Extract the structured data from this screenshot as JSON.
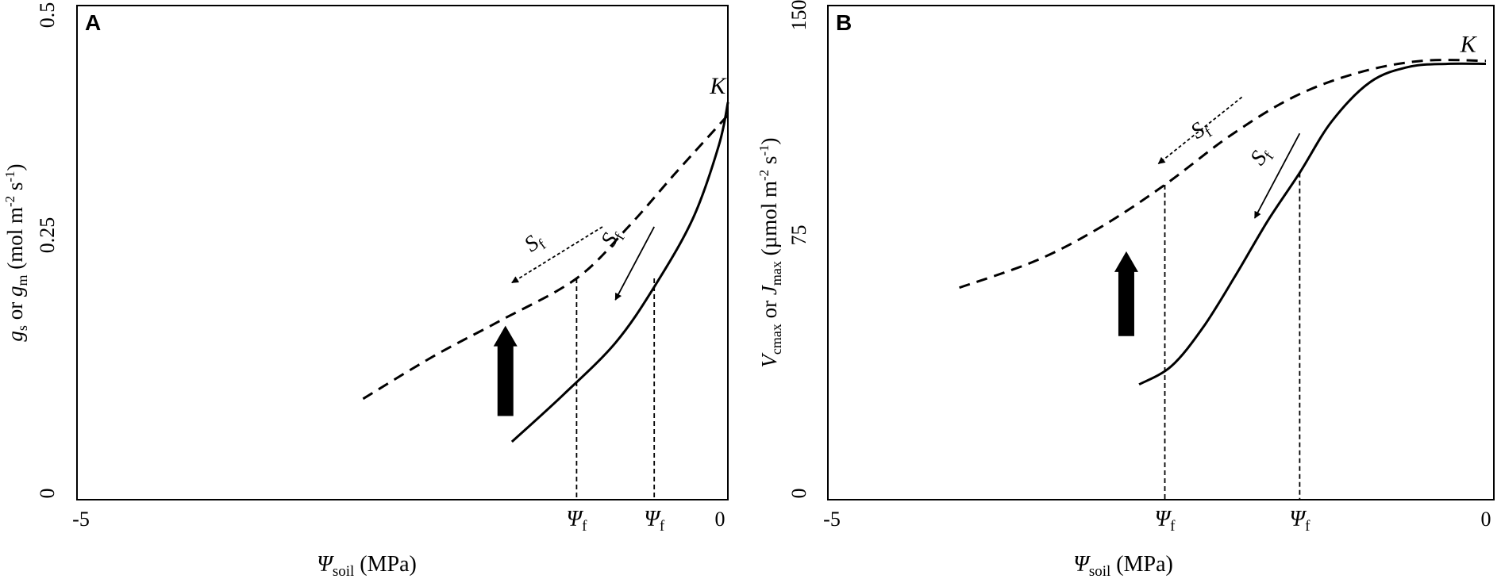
{
  "chart_data": [
    {
      "panel": "A",
      "type": "line",
      "xlabel": {
        "main": "Ψ",
        "sub": "soil",
        "tail": " (MPa)"
      },
      "ylabel": [
        {
          "t": "g",
          "style": "italic"
        },
        {
          "t": "s",
          "style": "sub"
        },
        {
          "t": " or ",
          "style": "normal"
        },
        {
          "t": "g",
          "style": "italic"
        },
        {
          "t": "m",
          "style": "sub"
        },
        {
          "t": " (mol m",
          "style": "normal"
        },
        {
          "t": "-2",
          "style": "sup"
        },
        {
          "t": " s",
          "style": "normal"
        },
        {
          "t": "-1",
          "style": "sup"
        },
        {
          "t": ")",
          "style": "normal"
        }
      ],
      "xlim": [
        -5,
        0
      ],
      "ylim": [
        0,
        0.5
      ],
      "x_ticks": [
        {
          "value": -5,
          "label": "-5"
        },
        {
          "value": 0,
          "label": "0"
        }
      ],
      "y_ticks": [
        {
          "value": 0,
          "label": "0"
        },
        {
          "value": 0.25,
          "label": "0.25"
        },
        {
          "value": 0.5,
          "label": "0.5"
        }
      ],
      "series": [
        {
          "style": "solid",
          "x": [
            -1.7,
            -1.3,
            -0.9,
            -0.6,
            -0.3,
            -0.1,
            -0.03
          ],
          "y": [
            0.06,
            0.115,
            0.175,
            0.24,
            0.32,
            0.405,
            0.455
          ]
        },
        {
          "style": "dashed",
          "x": [
            -2.85,
            -2.3,
            -1.8,
            -1.2,
            -0.8,
            -0.45,
            -0.15,
            -0.03
          ],
          "y": [
            0.11,
            0.16,
            0.2,
            0.25,
            0.31,
            0.37,
            0.42,
            0.44
          ]
        }
      ],
      "vlines": [
        {
          "x": -1.2,
          "y_top": 0.25,
          "label_main": "Ψ",
          "label_sub": "f"
        },
        {
          "x": -0.6,
          "y_top": 0.25,
          "label_main": "Ψ",
          "label_sub": "f"
        }
      ],
      "annotations": [
        {
          "text": "K",
          "x": -0.17,
          "y": 0.465
        },
        {
          "main": "S",
          "sub": "f",
          "x": -1.55,
          "y": 0.28,
          "rotate": -37
        },
        {
          "main": "S",
          "sub": "f",
          "x": -0.92,
          "y": 0.285,
          "rotate": -60
        }
      ],
      "arrows": [
        {
          "kind": "thin-dashed",
          "from": [
            -1.0,
            0.31
          ],
          "to": [
            -1.7,
            0.245
          ]
        },
        {
          "kind": "thin-solid",
          "from": [
            -0.6,
            0.31
          ],
          "to": [
            -0.9,
            0.225
          ]
        },
        {
          "kind": "block-up",
          "from": [
            -1.75,
            0.09
          ],
          "to": [
            -1.75,
            0.195
          ]
        }
      ]
    },
    {
      "panel": "B",
      "type": "line",
      "xlabel": {
        "main": "Ψ",
        "sub": "soil",
        "tail": " (MPa)"
      },
      "ylabel": [
        {
          "t": "V",
          "style": "italic"
        },
        {
          "t": "cmax",
          "style": "sub"
        },
        {
          "t": " or ",
          "style": "normal"
        },
        {
          "t": "J",
          "style": "italic"
        },
        {
          "t": "max",
          "style": "sub"
        },
        {
          "t": " (µmol m",
          "style": "normal"
        },
        {
          "t": "-2",
          "style": "sup"
        },
        {
          "t": " s",
          "style": "normal"
        },
        {
          "t": "-1",
          "style": "sup"
        },
        {
          "t": ")",
          "style": "normal"
        }
      ],
      "xlim": [
        -5,
        0
      ],
      "ylim": [
        0,
        150
      ],
      "x_ticks": [
        {
          "value": -5,
          "label": "-5"
        },
        {
          "value": 0,
          "label": "0"
        }
      ],
      "y_ticks": [
        {
          "value": 0,
          "label": "0"
        },
        {
          "value": 75,
          "label": "75"
        },
        {
          "value": 150,
          "label": "150"
        }
      ],
      "series": [
        {
          "style": "solid",
          "x": [
            -2.7,
            -2.45,
            -2.2,
            -1.95,
            -1.7,
            -1.45,
            -1.2,
            -0.9,
            -0.6,
            -0.3,
            0
          ],
          "y": [
            36,
            42,
            55,
            72,
            90,
            106,
            123,
            136,
            141,
            142,
            142
          ]
        },
        {
          "style": "dashed",
          "x": [
            -4.1,
            -3.5,
            -3.0,
            -2.5,
            -2.0,
            -1.5,
            -1.0,
            -0.5,
            0
          ],
          "y": [
            68,
            77,
            88,
            102,
            118,
            131,
            139,
            143,
            143
          ]
        }
      ],
      "vlines": [
        {
          "x": -2.5,
          "y_top": 102,
          "label_main": "Ψ",
          "label_sub": "f"
        },
        {
          "x": -1.45,
          "y_top": 106,
          "label_main": "Ψ",
          "label_sub": "f"
        }
      ],
      "annotations": [
        {
          "text": "K",
          "x": -0.2,
          "y": 146
        },
        {
          "main": "S",
          "sub": "f",
          "x": -2.25,
          "y": 117,
          "rotate": -33
        },
        {
          "main": "S",
          "sub": "f",
          "x": -1.75,
          "y": 108,
          "rotate": -55
        }
      ],
      "arrows": [
        {
          "kind": "thin-dashed",
          "from": [
            -1.9,
            131
          ],
          "to": [
            -2.55,
            109
          ]
        },
        {
          "kind": "thin-solid",
          "from": [
            -1.45,
            119
          ],
          "to": [
            -1.8,
            91
          ]
        },
        {
          "kind": "block-up",
          "from": [
            -2.8,
            52
          ],
          "to": [
            -2.8,
            80
          ]
        }
      ]
    }
  ]
}
